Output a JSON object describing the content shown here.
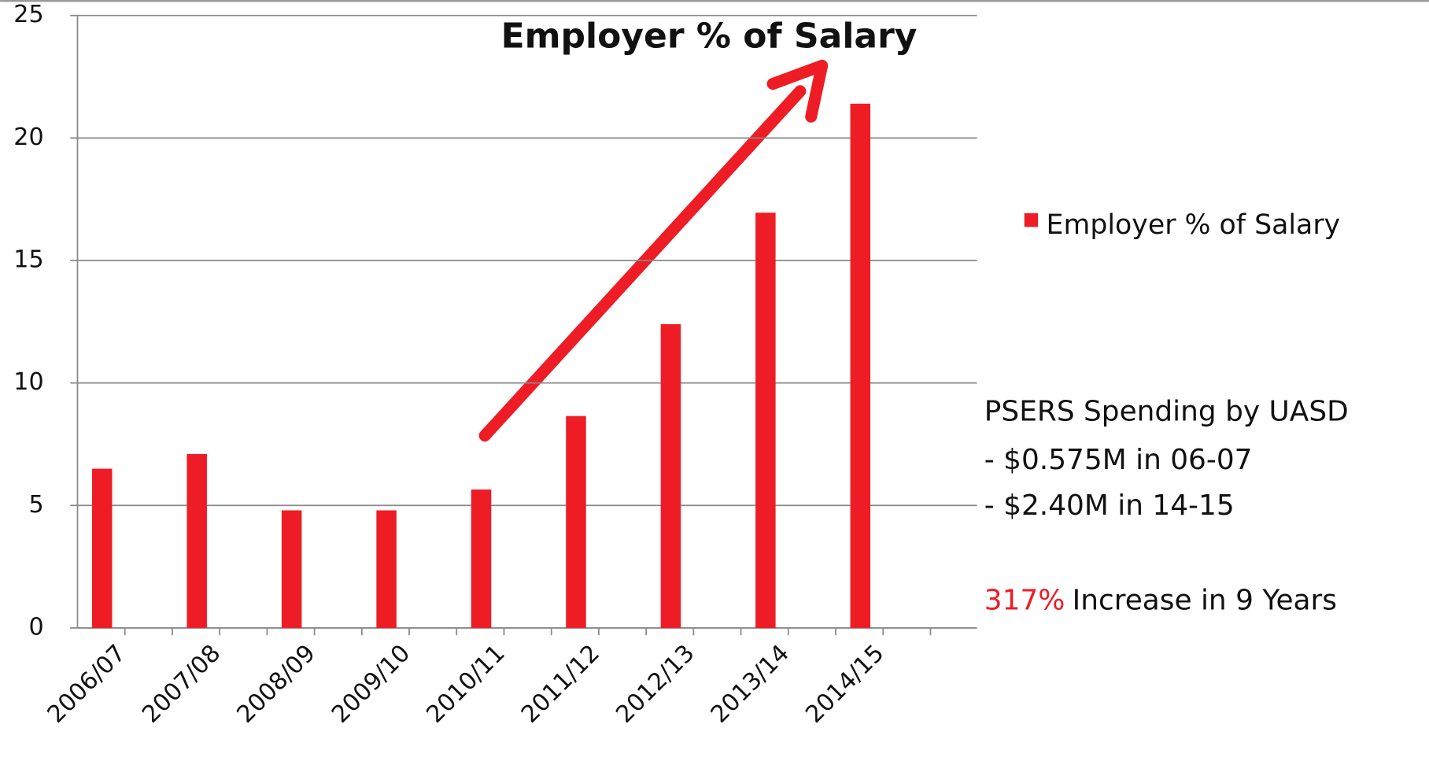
{
  "chart_data": {
    "type": "bar",
    "title": "Employer % of Salary",
    "categories": [
      "2006/07",
      "2007/08",
      "2008/09",
      "2009/10",
      "2010/11",
      "2011/12",
      "2012/13",
      "2013/14",
      "2014/15"
    ],
    "series": [
      {
        "name": "Employer % of Salary",
        "color": "#ee1c25",
        "values": [
          6.5,
          7.1,
          4.8,
          4.8,
          5.65,
          8.65,
          12.4,
          16.95,
          21.4
        ]
      }
    ],
    "ylim": [
      0,
      25
    ],
    "yticks": [
      0,
      5,
      10,
      15,
      20,
      25
    ],
    "grid": true,
    "legend": "right",
    "annotations": [
      "PSERS Spending by UASD",
      "- $0.575M in 06-07",
      "- $2.40M in 14-15",
      "317%",
      "Increase in 9 Years"
    ],
    "annotation_highlight_color": "#ee1c25"
  }
}
